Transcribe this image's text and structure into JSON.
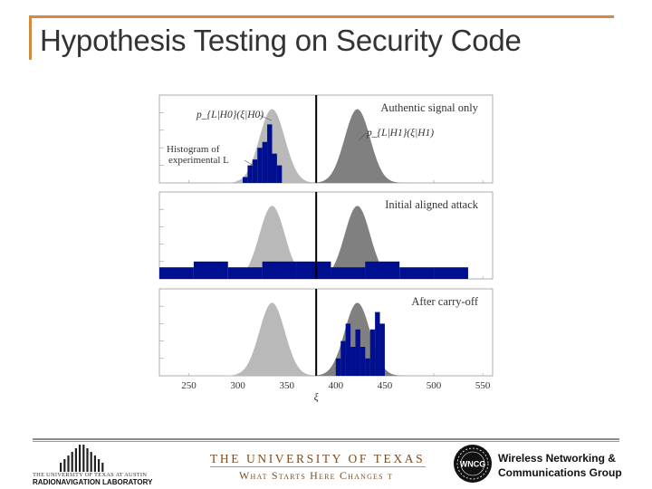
{
  "slide": {
    "title": "Hypothesis Testing on Security Code"
  },
  "chart_data": {
    "type": "area",
    "xlabel": "ξ",
    "xticks": [
      "250",
      "300",
      "350",
      "400",
      "450",
      "500",
      "550"
    ],
    "xlim": [
      220,
      560
    ],
    "threshold": 380,
    "panels": [
      {
        "label": "Authentic signal only",
        "annotations": {
          "h0": "p_{L|H0}(ξ|H0)",
          "h1": "p_{L|H1}(ξ|H1)",
          "hist": "Histogram of experimental L"
        },
        "h0_mean": 335,
        "h1_mean": 422,
        "sigma": 13,
        "histogram": [
          [
            305,
            1
          ],
          [
            310,
            3
          ],
          [
            315,
            4
          ],
          [
            320,
            6
          ],
          [
            325,
            7
          ],
          [
            330,
            10
          ],
          [
            335,
            5
          ],
          [
            340,
            3
          ]
        ]
      },
      {
        "label": "Initial aligned attack",
        "h0_mean": 335,
        "h1_mean": 422,
        "sigma": 13,
        "histogram": [
          [
            220,
            2
          ],
          [
            255,
            3
          ],
          [
            290,
            2
          ],
          [
            325,
            3
          ],
          [
            360,
            3
          ],
          [
            395,
            2
          ],
          [
            430,
            3
          ],
          [
            465,
            2
          ],
          [
            500,
            2
          ]
        ]
      },
      {
        "label": "After carry-off",
        "h0_mean": 335,
        "h1_mean": 422,
        "sigma": 13,
        "histogram": [
          [
            400,
            3
          ],
          [
            405,
            6
          ],
          [
            410,
            9
          ],
          [
            415,
            5
          ],
          [
            420,
            8
          ],
          [
            425,
            5
          ],
          [
            430,
            3
          ],
          [
            435,
            8
          ],
          [
            440,
            11
          ],
          [
            445,
            9
          ]
        ]
      }
    ],
    "colors": {
      "h0": "#b9b9b9",
      "h1": "#808080",
      "hist": "#000f8f",
      "threshold": "#000000",
      "panel_bg": "#ffffff",
      "grid": "#d8d8d8"
    }
  },
  "footer": {
    "rnl_line1": "THE UNIVERSITY OF TEXAS AT AUSTIN",
    "rnl_line2": "RADIONAVIGATION LABORATORY",
    "ut_name": "THE UNIVERSITY OF TEXAS",
    "ut_tagline": "What Starts Here Changes t",
    "wncg_badge": "WNCG",
    "wncg_line1": "Wireless Networking &",
    "wncg_line2": "Communications Group"
  }
}
